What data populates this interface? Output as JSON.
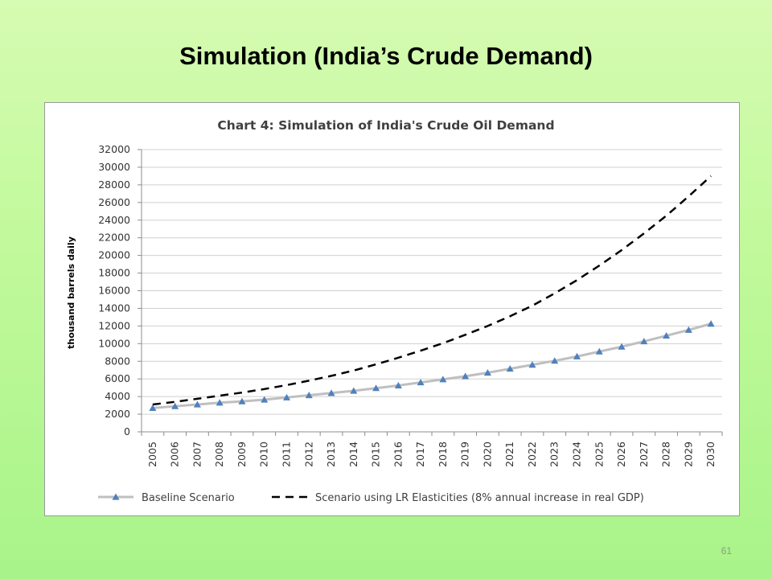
{
  "slide": {
    "title": "Simulation (India’s Crude Demand)",
    "page_number": "61"
  },
  "chart_data": {
    "type": "line",
    "title": "Chart 4: Simulation of India's Crude Oil Demand",
    "xlabel": "",
    "ylabel": "thousand barrels daily",
    "x": [
      "2005",
      "2006",
      "2007",
      "2008",
      "2009",
      "2010",
      "2011",
      "2012",
      "2013",
      "2014",
      "2015",
      "2016",
      "2017",
      "2018",
      "2019",
      "2020",
      "2021",
      "2022",
      "2023",
      "2024",
      "2025",
      "2026",
      "2027",
      "2028",
      "2029",
      "2030"
    ],
    "ylim": [
      0,
      32000
    ],
    "yticks": [
      0,
      2000,
      4000,
      6000,
      8000,
      10000,
      12000,
      14000,
      16000,
      18000,
      20000,
      22000,
      24000,
      26000,
      28000,
      30000,
      32000
    ],
    "grid": true,
    "legend_position": "bottom",
    "series": [
      {
        "name": "Baseline Scenario",
        "style": "solid-triangle",
        "line_color": "#bfbfbf",
        "marker_color": "#4f81bd",
        "values": [
          2700,
          2900,
          3100,
          3300,
          3450,
          3650,
          3900,
          4150,
          4400,
          4650,
          4950,
          5250,
          5600,
          5950,
          6300,
          6700,
          7150,
          7600,
          8050,
          8550,
          9100,
          9650,
          10250,
          10900,
          11550,
          12250
        ]
      },
      {
        "name": "Scenario using LR Elasticities (8%  annual increase in real GDP)",
        "style": "dashed",
        "line_color": "#000000",
        "values": [
          3100,
          3400,
          3750,
          4100,
          4450,
          4850,
          5300,
          5800,
          6350,
          6950,
          7650,
          8400,
          9200,
          10050,
          11000,
          12000,
          13100,
          14300,
          15700,
          17200,
          18850,
          20600,
          22500,
          24500,
          26700,
          29000
        ]
      }
    ]
  }
}
